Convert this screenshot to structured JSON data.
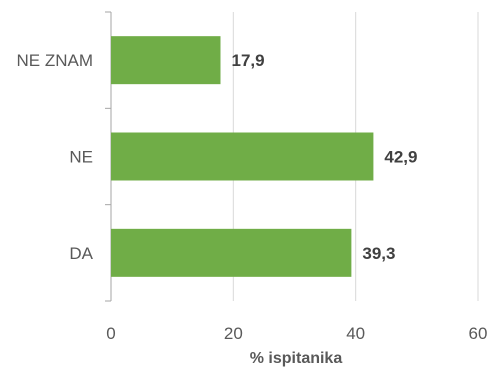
{
  "chart_data": {
    "type": "bar",
    "orientation": "horizontal",
    "categories": [
      "NE ZNAM",
      "NE",
      "DA"
    ],
    "values": [
      17.9,
      42.9,
      39.3
    ],
    "value_labels": [
      "17,9",
      "42,9",
      "39,3"
    ],
    "xlabel": "% ispitanika",
    "ylabel": "",
    "xlim": [
      0,
      60
    ],
    "x_ticks": [
      0,
      20,
      40,
      60
    ],
    "x_tick_labels": [
      "0",
      "20",
      "40",
      "60"
    ],
    "grid": true,
    "legend": "none",
    "colors": {
      "bar": "#70ad47",
      "grid": "#d9d9d9",
      "text": "#595959",
      "data_label": "#404040"
    }
  }
}
